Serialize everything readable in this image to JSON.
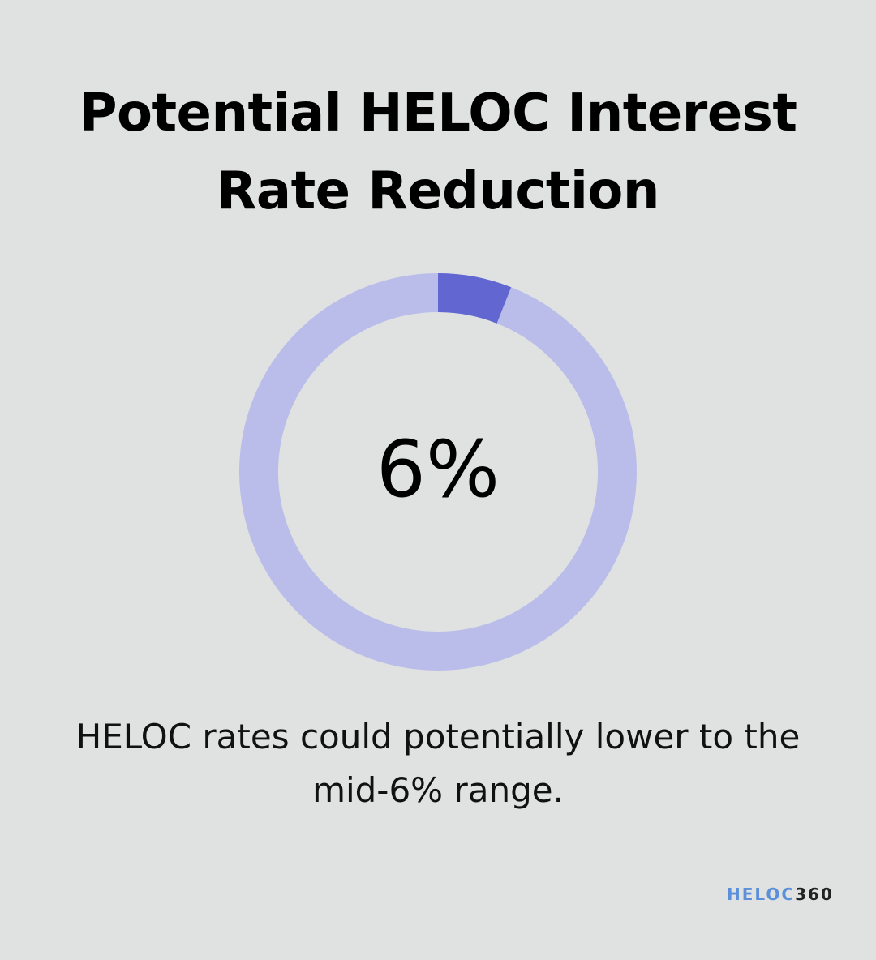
{
  "title_lines": [
    "Potential HELOC Interest",
    "Rate Reduction"
  ],
  "chart_data": {
    "type": "pie",
    "style": "donut",
    "center_label": "6%",
    "value": 6,
    "total": 100,
    "colors": {
      "value": "#6166d1",
      "remainder": "#babdea"
    }
  },
  "caption_lines": [
    "HELOC rates could potentially lower to the",
    "mid-6% range."
  ],
  "logo": {
    "part1": "HELOC",
    "part2": "360"
  }
}
